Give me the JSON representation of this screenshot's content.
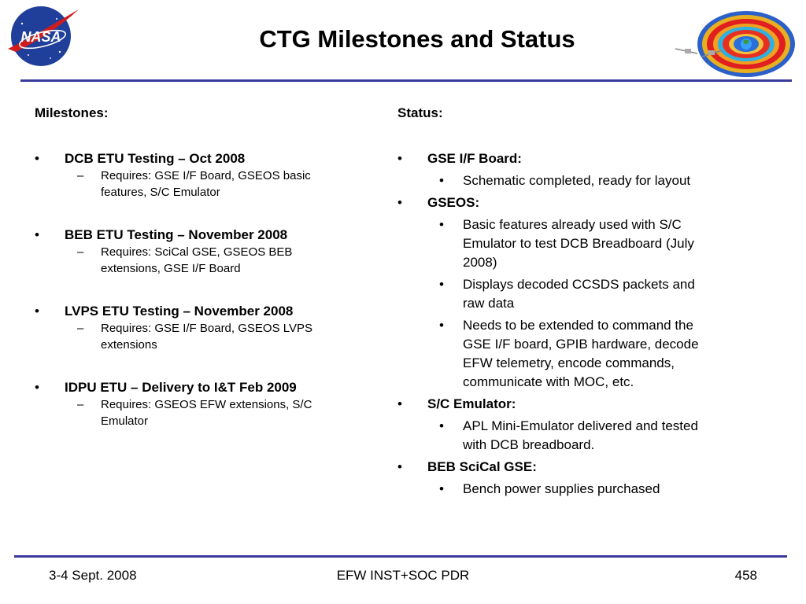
{
  "header": {
    "title": "CTG Milestones and Status",
    "logo_text": "NASA"
  },
  "left": {
    "heading": "Milestones:",
    "items": [
      {
        "label": "DCB ETU Testing – Oct 2008",
        "sub": "Requires: GSE I/F Board, GSEOS basic features, S/C Emulator"
      },
      {
        "label": "BEB ETU Testing – November 2008",
        "sub": "Requires: SciCal GSE, GSEOS BEB extensions, GSE I/F Board"
      },
      {
        "label": "LVPS ETU Testing – November 2008",
        "sub": "Requires: GSE I/F Board, GSEOS LVPS extensions"
      },
      {
        "label": "IDPU ETU – Delivery to I&T Feb 2009",
        "sub": "Requires: GSEOS EFW extensions, S/C Emulator"
      }
    ]
  },
  "right": {
    "heading": "Status:",
    "items": [
      {
        "label": "GSE I/F Board:",
        "subs": [
          "Schematic completed, ready for layout"
        ]
      },
      {
        "label": "GSEOS:",
        "subs": [
          "Basic features already used with S/C Emulator to test DCB Breadboard (July 2008)",
          "Displays decoded CCSDS packets and raw data",
          "Needs to be extended to command the GSE I/F board, GPIB hardware, decode EFW telemetry, encode commands, communicate with MOC, etc."
        ]
      },
      {
        "label": "S/C Emulator:",
        "subs": [
          "APL Mini-Emulator delivered and tested with DCB breadboard."
        ]
      },
      {
        "label": "BEB SciCal GSE:",
        "subs": [
          "Bench power supplies purchased"
        ]
      }
    ]
  },
  "footer": {
    "date": "3-4 Sept. 2008",
    "center": "EFW INST+SOC PDR",
    "page": "458"
  },
  "colors": {
    "rule": "#3a3a9a",
    "nasa_blue": "#1f3f9a",
    "nasa_red": "#d01c1c"
  }
}
